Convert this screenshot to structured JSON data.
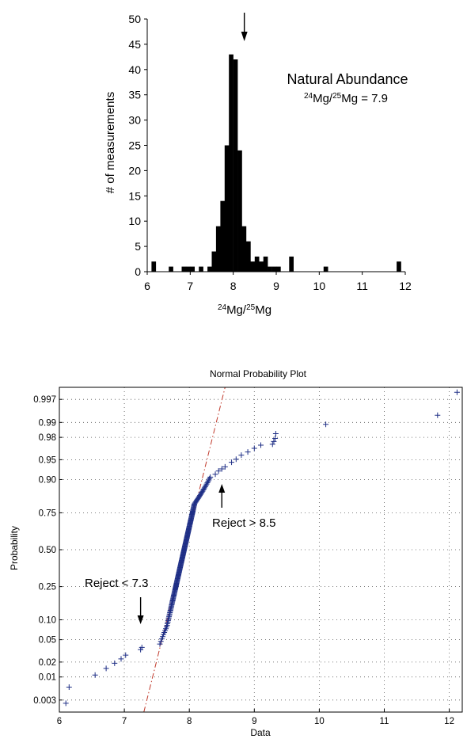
{
  "chart_data": [
    {
      "type": "bar",
      "x_axis_label": "24Mg/25Mg",
      "y_axis_label": "# of measurements",
      "xlim": [
        6,
        12
      ],
      "ylim": [
        0,
        50
      ],
      "x_ticks": [
        "6",
        "7",
        "8",
        "9",
        "10",
        "11",
        "12"
      ],
      "y_ticks": [
        "0",
        "5",
        "10",
        "15",
        "20",
        "25",
        "30",
        "35",
        "40",
        "45",
        "50"
      ],
      "bin_width": 0.1,
      "bins": [
        {
          "x": 6.1,
          "count": 2
        },
        {
          "x": 6.5,
          "count": 1
        },
        {
          "x": 6.8,
          "count": 1
        },
        {
          "x": 6.9,
          "count": 1
        },
        {
          "x": 7.0,
          "count": 1
        },
        {
          "x": 7.2,
          "count": 1
        },
        {
          "x": 7.4,
          "count": 1
        },
        {
          "x": 7.5,
          "count": 4
        },
        {
          "x": 7.6,
          "count": 9
        },
        {
          "x": 7.7,
          "count": 14
        },
        {
          "x": 7.8,
          "count": 25
        },
        {
          "x": 7.9,
          "count": 43
        },
        {
          "x": 8.0,
          "count": 42
        },
        {
          "x": 8.1,
          "count": 24
        },
        {
          "x": 8.2,
          "count": 9
        },
        {
          "x": 8.3,
          "count": 6
        },
        {
          "x": 8.4,
          "count": 2
        },
        {
          "x": 8.5,
          "count": 3
        },
        {
          "x": 8.6,
          "count": 2
        },
        {
          "x": 8.7,
          "count": 3
        },
        {
          "x": 8.8,
          "count": 1
        },
        {
          "x": 8.9,
          "count": 1
        },
        {
          "x": 9.0,
          "count": 1
        },
        {
          "x": 9.3,
          "count": 3
        },
        {
          "x": 10.1,
          "count": 1
        },
        {
          "x": 11.8,
          "count": 2
        }
      ],
      "annotation_title": "Natural Abundance",
      "annotation_ratio": "24Mg/25Mg = 7.9",
      "arrow_x": 8.0
    },
    {
      "type": "scatter",
      "title": "Normal Probability Plot",
      "x_axis_label": "Data",
      "y_axis_label": "Probability",
      "xlim": [
        6,
        12.2
      ],
      "x_ticks": [
        "6",
        "7",
        "8",
        "9",
        "10",
        "11",
        "12"
      ],
      "y_ticks": [
        "0.003",
        "0.01",
        "0.02",
        "0.05",
        "0.10",
        "0.25",
        "0.50",
        "0.75",
        "0.90",
        "0.95",
        "0.98",
        "0.99",
        "0.997"
      ],
      "y_tick_values": [
        0.003,
        0.01,
        0.02,
        0.05,
        0.1,
        0.25,
        0.5,
        0.75,
        0.9,
        0.95,
        0.98,
        0.99,
        0.997
      ],
      "reference_line": {
        "p1": [
          7.3,
          0.0015
        ],
        "p2": [
          8.55,
          0.9985
        ]
      },
      "reject_low_label": "Reject < 7.3",
      "reject_high_label": "Reject > 8.5",
      "reject_low_x": 7.25,
      "reject_high_x": 8.5,
      "tail_points": [
        [
          6.1,
          0.0025
        ],
        [
          6.15,
          0.006
        ],
        [
          6.55,
          0.011
        ],
        [
          6.72,
          0.015
        ],
        [
          6.85,
          0.019
        ],
        [
          6.95,
          0.023
        ],
        [
          7.02,
          0.027
        ],
        [
          7.25,
          0.034
        ],
        [
          7.27,
          0.037
        ],
        [
          8.4,
          0.916
        ],
        [
          8.45,
          0.925
        ],
        [
          8.5,
          0.93
        ],
        [
          8.55,
          0.935
        ],
        [
          8.65,
          0.945
        ],
        [
          8.72,
          0.951
        ],
        [
          8.8,
          0.958
        ],
        [
          8.9,
          0.963
        ],
        [
          9.0,
          0.968
        ],
        [
          9.1,
          0.972
        ],
        [
          9.28,
          0.973
        ],
        [
          9.3,
          0.976
        ],
        [
          9.32,
          0.979
        ],
        [
          9.33,
          0.983
        ],
        [
          10.1,
          0.989
        ],
        [
          11.82,
          0.993
        ],
        [
          12.12,
          0.998
        ]
      ]
    }
  ]
}
